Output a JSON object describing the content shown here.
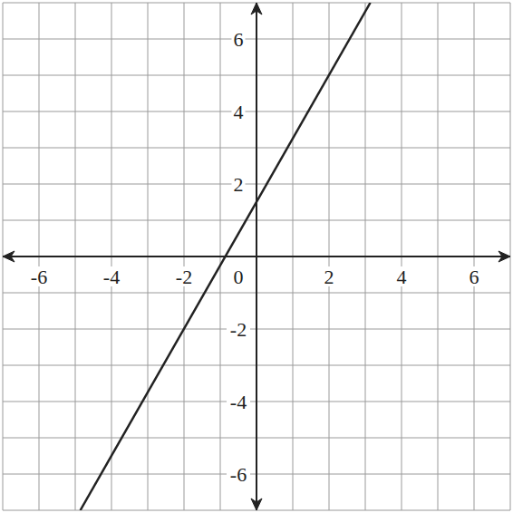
{
  "chart_data": {
    "type": "line",
    "x": [
      -4.86,
      3.14
    ],
    "values": [
      -7,
      7
    ],
    "color": "#222222",
    "xlim": [
      -7,
      7
    ],
    "ylim": [
      -7,
      7
    ],
    "xticks": [
      -6,
      -4,
      -2,
      0,
      2,
      4,
      6
    ],
    "yticks": [
      -6,
      -4,
      -2,
      2,
      4,
      6
    ],
    "grid": true
  }
}
